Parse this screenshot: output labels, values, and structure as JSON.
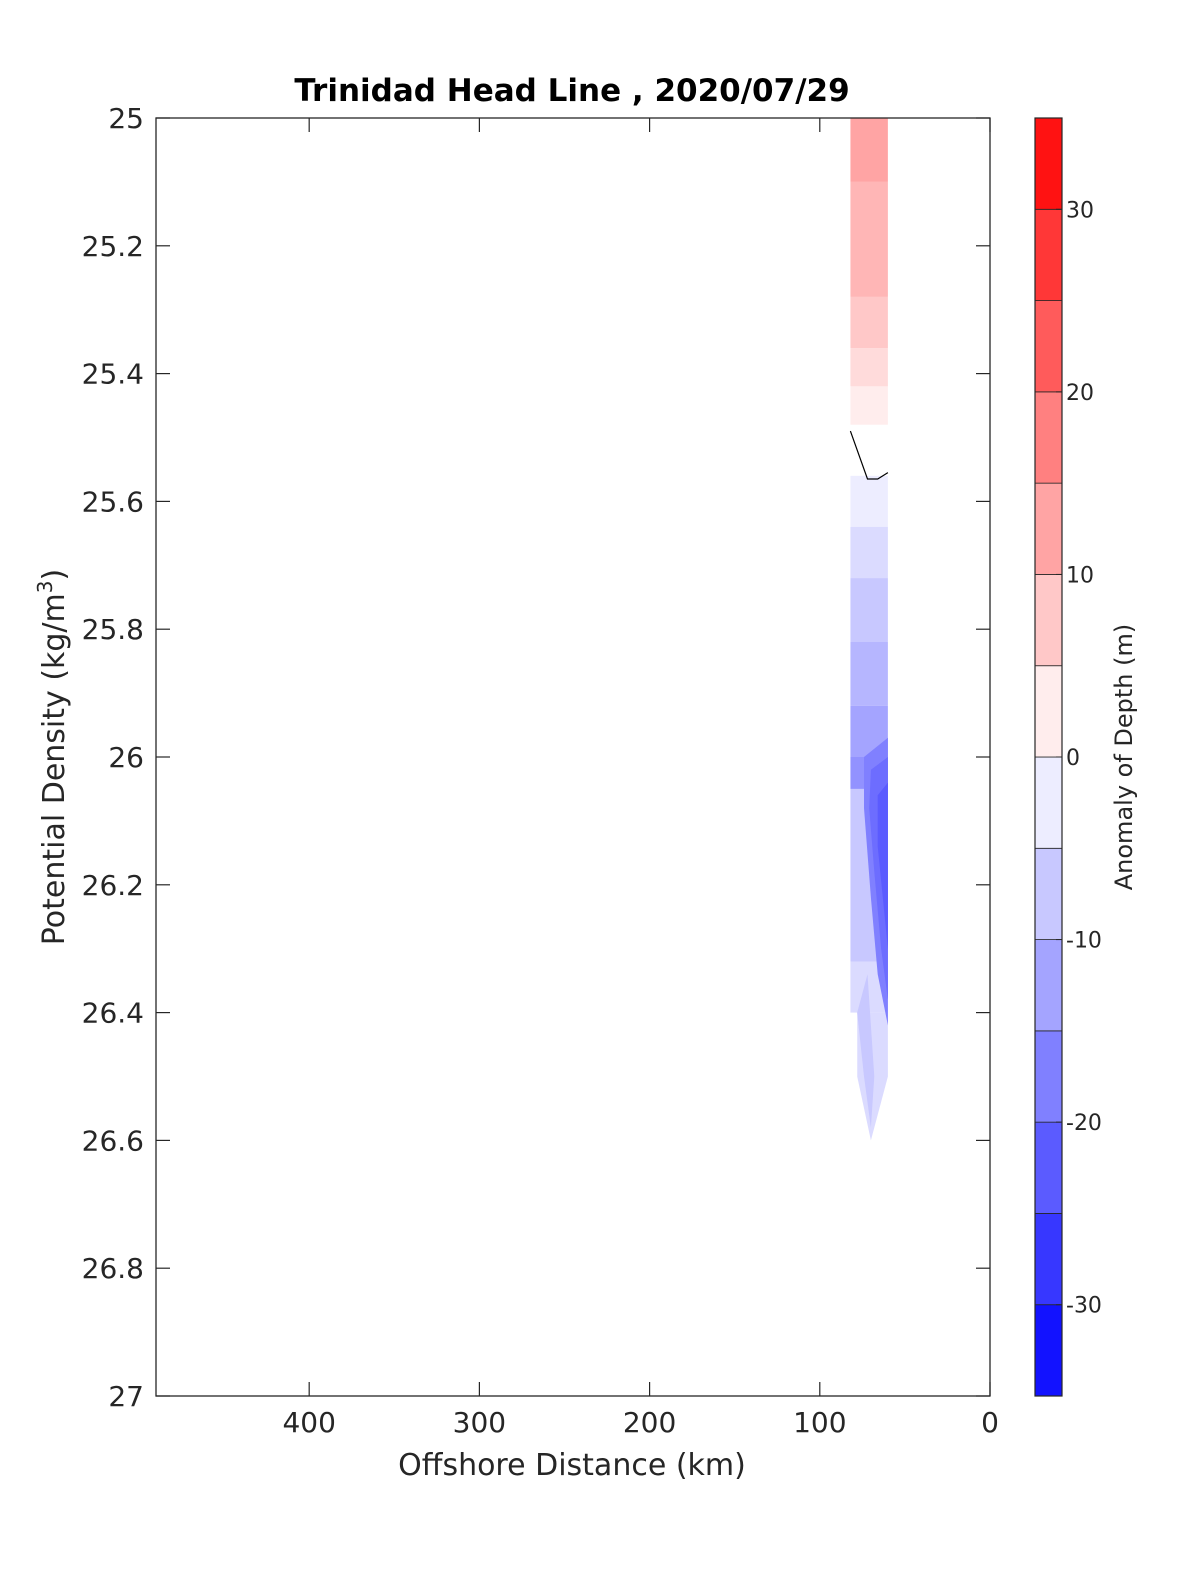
{
  "chart_data": {
    "type": "heatmap",
    "subtype": "filled-contour section",
    "title": "Trinidad Head Line , 2020/07/29",
    "xlabel": "Offshore Distance (km)",
    "ylabel_main": "Potential Density (kg/m",
    "ylabel_sup": "3",
    "ylabel_close": ")",
    "xlim": [
      490,
      0
    ],
    "x_reversed": true,
    "ylim": [
      25,
      27
    ],
    "y_reversed": true,
    "x_ticks": [
      400,
      300,
      200,
      100,
      0
    ],
    "y_ticks": [
      25,
      25.2,
      25.4,
      25.6,
      25.8,
      26,
      26.2,
      26.4,
      26.6,
      26.8,
      27
    ],
    "y_tick_labels": [
      "25",
      "25.2",
      "25.4",
      "25.6",
      "25.8",
      "26",
      "26.2",
      "26.4",
      "26.6",
      "26.8",
      "27"
    ],
    "grid": false,
    "colorbar": {
      "label": "Anomaly of Depth (m)",
      "range": [
        -35,
        35
      ],
      "step": 5,
      "tick_values": [
        30,
        20,
        10,
        0,
        -10,
        -20,
        -30
      ],
      "tick_labels": [
        "30",
        "20",
        "10",
        "0",
        "-10",
        "-20",
        "-30"
      ],
      "colormap": "blue-white-red"
    },
    "contour_bands": [
      {
        "x_left": 82,
        "x_right": 60,
        "y_top": 25.0,
        "y_bottom": 25.1,
        "value": 12.5
      },
      {
        "x_left": 82,
        "x_right": 60,
        "y_top": 25.1,
        "y_bottom": 25.28,
        "value": 10
      },
      {
        "x_left": 82,
        "x_right": 60,
        "y_top": 25.28,
        "y_bottom": 25.36,
        "value": 7.5
      },
      {
        "x_left": 82,
        "x_right": 60,
        "y_top": 25.36,
        "y_bottom": 25.42,
        "value": 5
      },
      {
        "x_left": 82,
        "x_right": 60,
        "y_top": 25.42,
        "y_bottom": 25.48,
        "value": 2.5
      },
      {
        "x_left": 82,
        "x_right": 60,
        "y_top": 25.56,
        "y_bottom": 25.64,
        "value": -2.5
      },
      {
        "x_left": 82,
        "x_right": 60,
        "y_top": 25.64,
        "y_bottom": 25.72,
        "value": -5
      },
      {
        "x_left": 82,
        "x_right": 60,
        "y_top": 25.72,
        "y_bottom": 25.82,
        "value": -7.5
      },
      {
        "x_left": 82,
        "x_right": 60,
        "y_top": 25.82,
        "y_bottom": 25.92,
        "value": -10
      },
      {
        "x_left": 82,
        "x_right": 60,
        "y_top": 25.92,
        "y_bottom": 26.0,
        "value": -12.5
      },
      {
        "x_left": 82,
        "x_right": 60,
        "y_top": 26.0,
        "y_bottom": 26.05,
        "value": -15
      },
      {
        "x_left": 82,
        "x_right": 60,
        "y_top": 26.05,
        "y_bottom": 26.32,
        "value": -7.5
      },
      {
        "x_left": 82,
        "x_right": 60,
        "y_top": 26.32,
        "y_bottom": 26.4,
        "value": -5
      },
      {
        "x_left": 78,
        "x_right": 60,
        "y_top": 26.4,
        "y_bottom": 26.5,
        "value": -5
      }
    ],
    "contour_polys": [
      {
        "value": -17.5,
        "points": [
          [
            74,
            26.0
          ],
          [
            60,
            25.97
          ],
          [
            60,
            26.42
          ],
          [
            66,
            26.34
          ],
          [
            70,
            26.22
          ],
          [
            74,
            26.08
          ]
        ]
      },
      {
        "value": -20,
        "points": [
          [
            70,
            26.02
          ],
          [
            60,
            26.0
          ],
          [
            60,
            26.38
          ],
          [
            64,
            26.3
          ],
          [
            68,
            26.18
          ],
          [
            71,
            26.08
          ]
        ]
      },
      {
        "value": -22.5,
        "points": [
          [
            66,
            26.06
          ],
          [
            60,
            26.04
          ],
          [
            60,
            26.3
          ],
          [
            63,
            26.22
          ],
          [
            66,
            26.14
          ]
        ]
      },
      {
        "value": -5,
        "points": [
          [
            78,
            26.5
          ],
          [
            60,
            26.5
          ],
          [
            70,
            26.6
          ]
        ]
      },
      {
        "value": -7.5,
        "points": [
          [
            78,
            26.4
          ],
          [
            72,
            26.34
          ],
          [
            68,
            26.5
          ],
          [
            70,
            26.58
          ],
          [
            74,
            26.5
          ]
        ]
      }
    ],
    "zero_contour": [
      [
        82,
        25.49
      ],
      [
        72,
        25.565
      ],
      [
        66,
        25.565
      ],
      [
        60,
        25.555
      ]
    ]
  }
}
